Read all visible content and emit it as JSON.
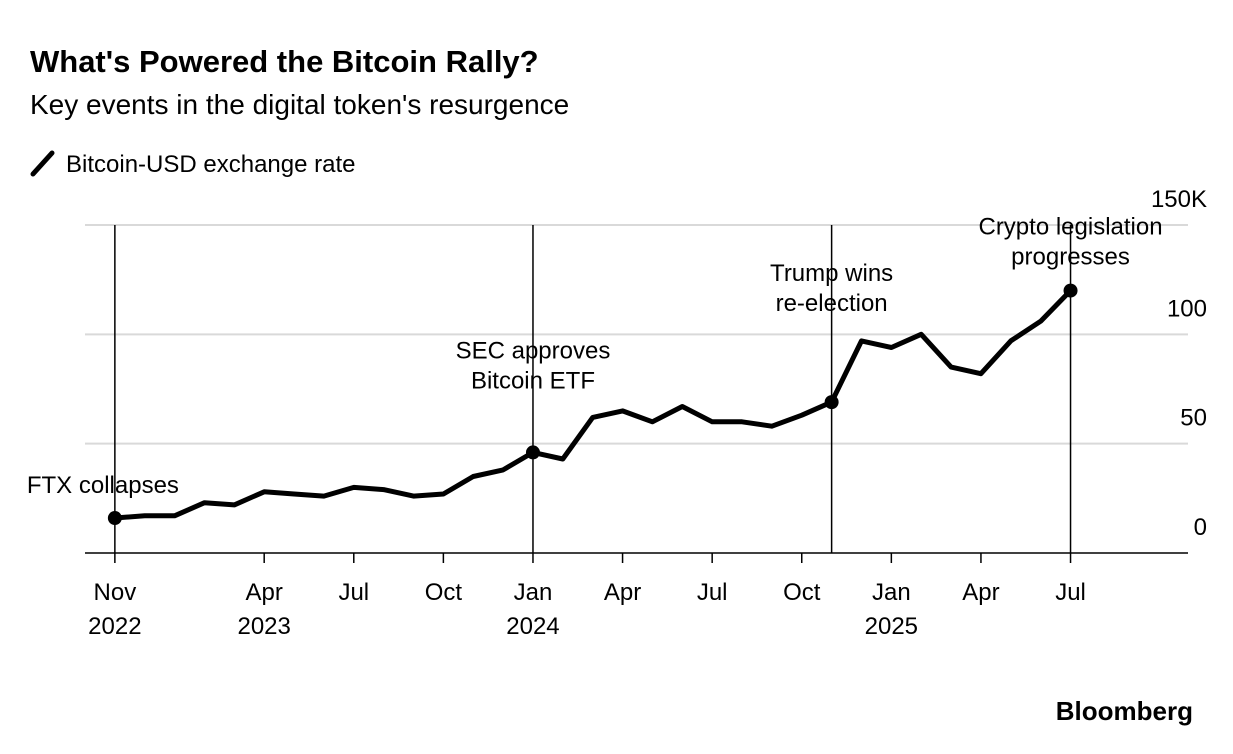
{
  "chart_data": {
    "type": "line",
    "title": "What's Powered the Bitcoin Rally?",
    "subtitle": "Key events in the digital token's resurgence",
    "source": "Bloomberg",
    "x": [
      "2022-11",
      "2022-12",
      "2023-01",
      "2023-02",
      "2023-03",
      "2023-04",
      "2023-05",
      "2023-06",
      "2023-07",
      "2023-08",
      "2023-09",
      "2023-10",
      "2023-11",
      "2023-12",
      "2024-01",
      "2024-02",
      "2024-03",
      "2024-04",
      "2024-05",
      "2024-06",
      "2024-07",
      "2024-08",
      "2024-09",
      "2024-10",
      "2024-11",
      "2024-12",
      "2025-01",
      "2025-02",
      "2025-03",
      "2025-04",
      "2025-05",
      "2025-06",
      "2025-07"
    ],
    "series": [
      {
        "name": "Bitcoin-USD exchange rate",
        "color": "#000000",
        "values": [
          16,
          17,
          17,
          23,
          22,
          28,
          27,
          26,
          30,
          29,
          26,
          27,
          35,
          38,
          46,
          43,
          62,
          65,
          60,
          67,
          60,
          60,
          58,
          63,
          69,
          97,
          94,
          100,
          85,
          82,
          97,
          106,
          120
        ]
      }
    ],
    "events": [
      {
        "x": "2022-11",
        "label": [
          "FTX collapses"
        ]
      },
      {
        "x": "2024-01",
        "label": [
          "SEC approves",
          "Bitcoin ETF"
        ]
      },
      {
        "x": "2024-11",
        "label": [
          "Trump wins",
          "re-election"
        ]
      },
      {
        "x": "2025-07",
        "label": [
          "Crypto legislation",
          "progresses"
        ]
      }
    ],
    "xlim": [
      "2022-10",
      "2025-11"
    ],
    "xticks": [
      {
        "value": "2022-11",
        "label": [
          "Nov",
          "2022"
        ]
      },
      {
        "value": "2023-04",
        "label": [
          "Apr",
          "2023"
        ]
      },
      {
        "value": "2023-07",
        "label": [
          "Jul"
        ]
      },
      {
        "value": "2023-10",
        "label": [
          "Oct"
        ]
      },
      {
        "value": "2024-01",
        "label": [
          "Jan",
          "2024"
        ]
      },
      {
        "value": "2024-04",
        "label": [
          "Apr"
        ]
      },
      {
        "value": "2024-07",
        "label": [
          "Jul"
        ]
      },
      {
        "value": "2024-10",
        "label": [
          "Oct"
        ]
      },
      {
        "value": "2025-01",
        "label": [
          "Jan",
          "2025"
        ]
      },
      {
        "value": "2025-04",
        "label": [
          "Apr"
        ]
      },
      {
        "value": "2025-07",
        "label": [
          "Jul"
        ]
      }
    ],
    "ylim": [
      0,
      150
    ],
    "yticks": [
      0,
      50,
      100,
      {
        "value": 150,
        "label": "150K"
      }
    ],
    "grid": true
  }
}
